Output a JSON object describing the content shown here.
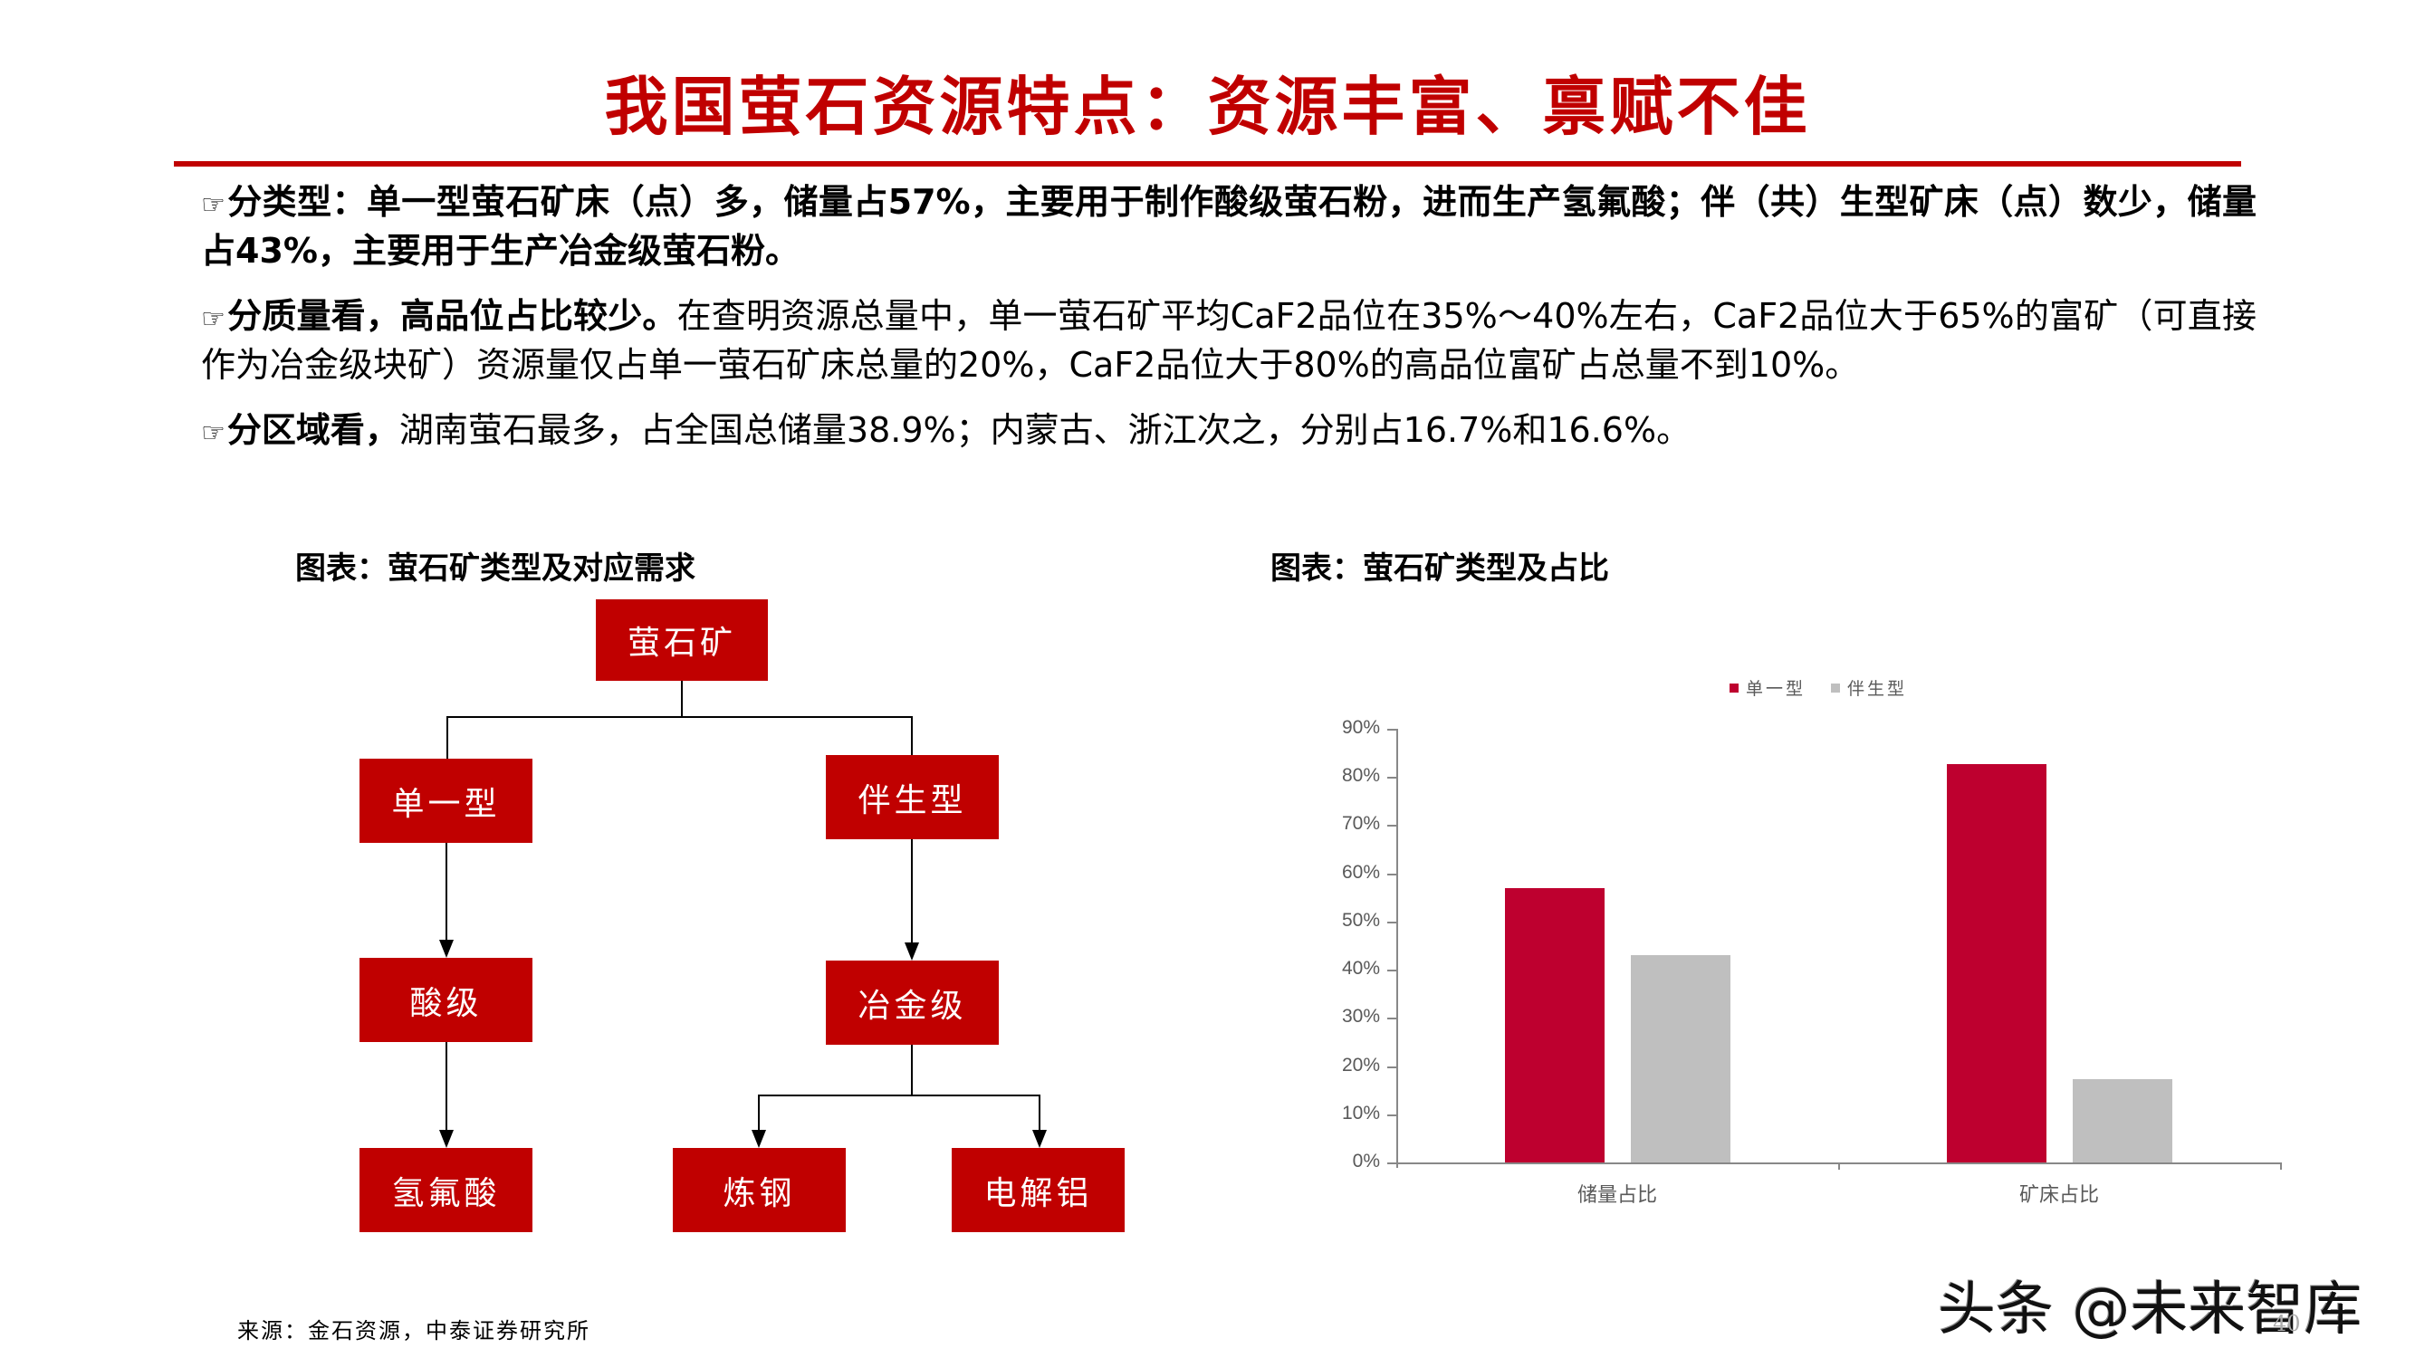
{
  "title": "我国萤石资源特点：资源丰富、禀赋不佳",
  "bullets": [
    {
      "icon": "pointing-hand-icon",
      "lead": "分类型：单一型萤石矿床（点）多，储量占57%，主要用于制作酸级萤石粉，进而生产氢氟酸；伴（共）生型矿床（点）数少，储量占43%，主要用于生产冶金级萤石粉。",
      "body": ""
    },
    {
      "icon": "pointing-hand-icon",
      "lead": "分质量看，高品位占比较少。",
      "body": "在查明资源总量中，单一萤石矿平均CaF2品位在35%～40%左右，CaF2品位大于65%的富矿（可直接作为冶金级块矿）资源量仅占单一萤石矿床总量的20%，CaF2品位大于80%的高品位富矿占总量不到10%。"
    },
    {
      "icon": "pointing-hand-icon",
      "lead": "分区域看，",
      "body": "湖南萤石最多，占全国总储量38.9%；内蒙古、浙江次之，分别占16.7%和16.6%。"
    }
  ],
  "diagram": {
    "title": "图表：萤石矿类型及对应需求",
    "nodes": {
      "root": "萤石矿",
      "single": "单一型",
      "associated": "伴生型",
      "acid": "酸级",
      "metallurgical": "冶金级",
      "hf": "氢氟酸",
      "steel": "炼钢",
      "aluminum": "电解铝"
    }
  },
  "chart": {
    "title": "图表：萤石矿类型及占比",
    "legend": [
      "单一型",
      "伴生型"
    ],
    "yticks": [
      "0%",
      "10%",
      "20%",
      "30%",
      "40%",
      "50%",
      "60%",
      "70%",
      "80%",
      "90%"
    ],
    "categories": [
      "储量占比",
      "矿床占比"
    ]
  },
  "chart_data": {
    "type": "bar",
    "title": "图表：萤石矿类型及占比",
    "categories": [
      "储量占比",
      "矿床占比"
    ],
    "series": [
      {
        "name": "单一型",
        "color": "#be002f",
        "values": [
          57,
          82.7
        ]
      },
      {
        "name": "伴生型",
        "color": "#bfbfbf",
        "values": [
          43,
          17.3
        ]
      }
    ],
    "xlabel": "",
    "ylabel": "",
    "ylim": [
      0,
      90
    ],
    "ytick_format": "percent",
    "grid": false,
    "legend_position": "top-right"
  },
  "colors": {
    "brand_red": "#c00000",
    "bar_red": "#be002f",
    "bar_gray": "#bfbfbf"
  },
  "source": "来源：金石资源，中泰证券研究所",
  "watermark": "头条 @未来智库",
  "page_number": "40"
}
